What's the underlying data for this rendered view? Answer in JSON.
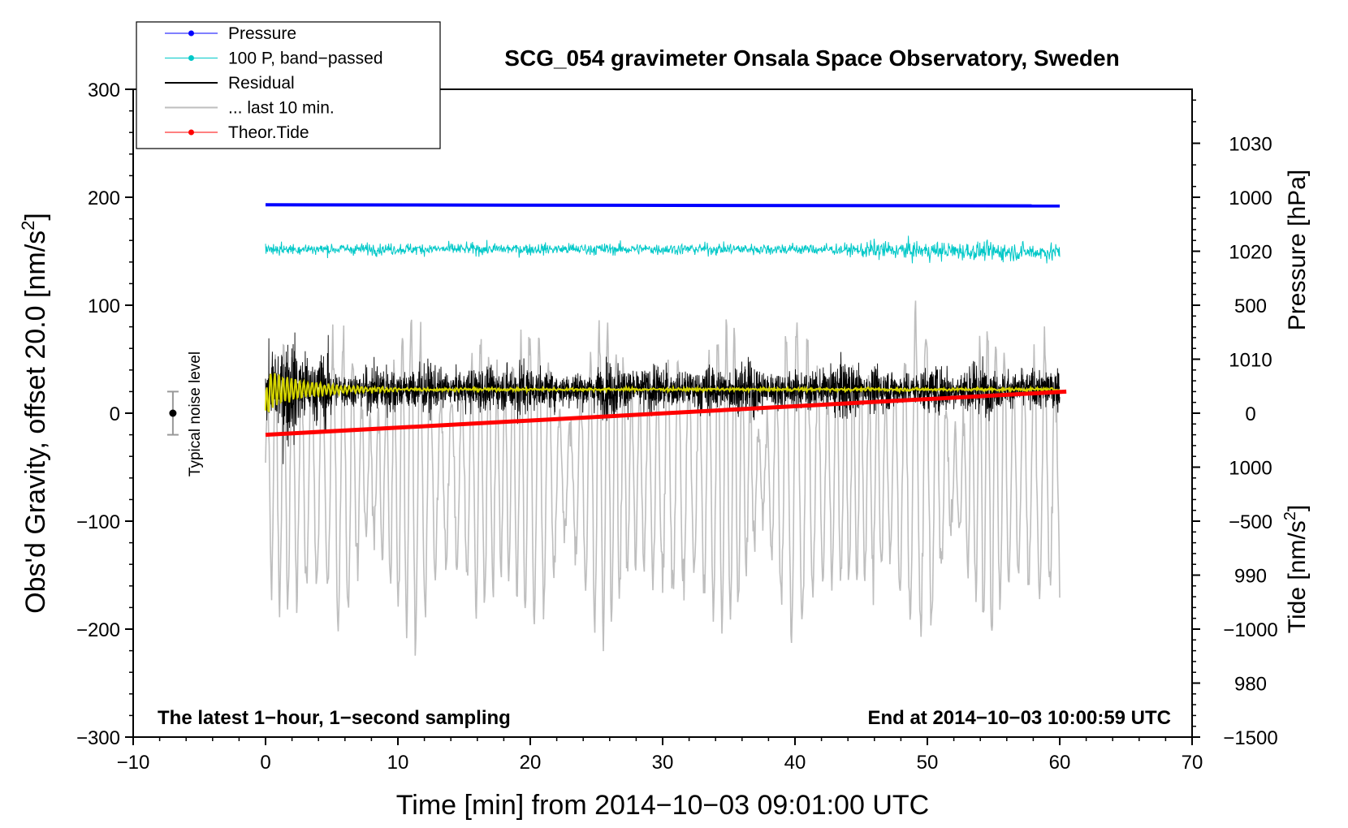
{
  "chart_data": {
    "type": "line",
    "title": "SCG_054 gravimeter Onsala Space Observatory, Sweden",
    "xlabel": "Time [min] from 2014−10−03 09:01:00 UTC",
    "ylabel": "Obs'd Gravity, offset 20.0 [nm/s²]",
    "ylabel_parts": [
      "Obs'd Gravity, offset 20.0 [nm/s",
      "2",
      "]"
    ],
    "y2label_pressure": "Pressure [hPa]",
    "y2label_tide": "Tide [nm/s²]",
    "y2label_tide_parts": [
      "Tide [nm/s",
      "2",
      "]"
    ],
    "xlim": [
      -10,
      70
    ],
    "ylim": [
      -300,
      300
    ],
    "pressure_axis_range": [
      975,
      1035
    ],
    "tide_axis_range": [
      -1500,
      1500
    ],
    "x_ticks": [
      "−10",
      "0",
      "10",
      "20",
      "30",
      "40",
      "50",
      "60",
      "70"
    ],
    "y_ticks": [
      "−300",
      "−200",
      "−100",
      "0",
      "100",
      "200",
      "300"
    ],
    "pressure_ticks": [
      "980",
      "990",
      "1000",
      "1010",
      "1020",
      "1030"
    ],
    "tide_ticks": [
      "−1500",
      "−1000",
      "−500",
      "0",
      "500",
      "1000"
    ],
    "legend": [
      {
        "label": "Pressure",
        "color": "#0000ff",
        "marker": "dot"
      },
      {
        "label": "100 P, band−passed",
        "color": "#00c8c8",
        "marker": "dot"
      },
      {
        "label": "Residual",
        "color": "#000000",
        "marker": "none"
      },
      {
        "label": "... last 10 min.",
        "color": "#bebebe",
        "marker": "none"
      },
      {
        "label": "Theor.Tide",
        "color": "#ff0000",
        "marker": "dot"
      }
    ],
    "series": [
      {
        "name": "Pressure",
        "axis": "pressure",
        "color": "#0000ff",
        "x": [
          0,
          60
        ],
        "values": [
          1024.3,
          1024.2
        ]
      },
      {
        "name": "100 P, band−passed",
        "axis": "gravity",
        "color": "#00c8c8",
        "x_range": [
          0,
          60
        ],
        "level": 152,
        "amplitude": 10
      },
      {
        "name": "Residual",
        "axis": "gravity",
        "color": "#000000",
        "x_range": [
          0,
          60
        ],
        "level": 22,
        "amplitude": 45
      },
      {
        "name": "Residual (smoothed)",
        "axis": "gravity",
        "color": "#d4d400",
        "x_range": [
          0,
          60
        ],
        "level": 22
      },
      {
        "name": "... last 10 min.",
        "axis": "tide",
        "color": "#bebebe",
        "x_range": [
          0,
          60
        ],
        "level": -300,
        "amplitude": 600
      },
      {
        "name": "Theor.Tide",
        "axis": "tide",
        "color": "#ff0000",
        "x": [
          0,
          60
        ],
        "values": [
          -100,
          100
        ]
      }
    ],
    "noise_level": {
      "label": "Typical noise level",
      "x": -7,
      "y": 0,
      "error": 20
    },
    "annotations": {
      "left_note": "The latest 1−hour, 1−second sampling",
      "right_note": "End at 2014−10−03 10:00:59 UTC"
    }
  },
  "colors": {
    "pressure": "#0000ff",
    "bandpassed": "#00c8c8",
    "residual": "#000000",
    "smoothed": "#d4d400",
    "last10": "#bebebe",
    "tide": "#ff0000"
  }
}
